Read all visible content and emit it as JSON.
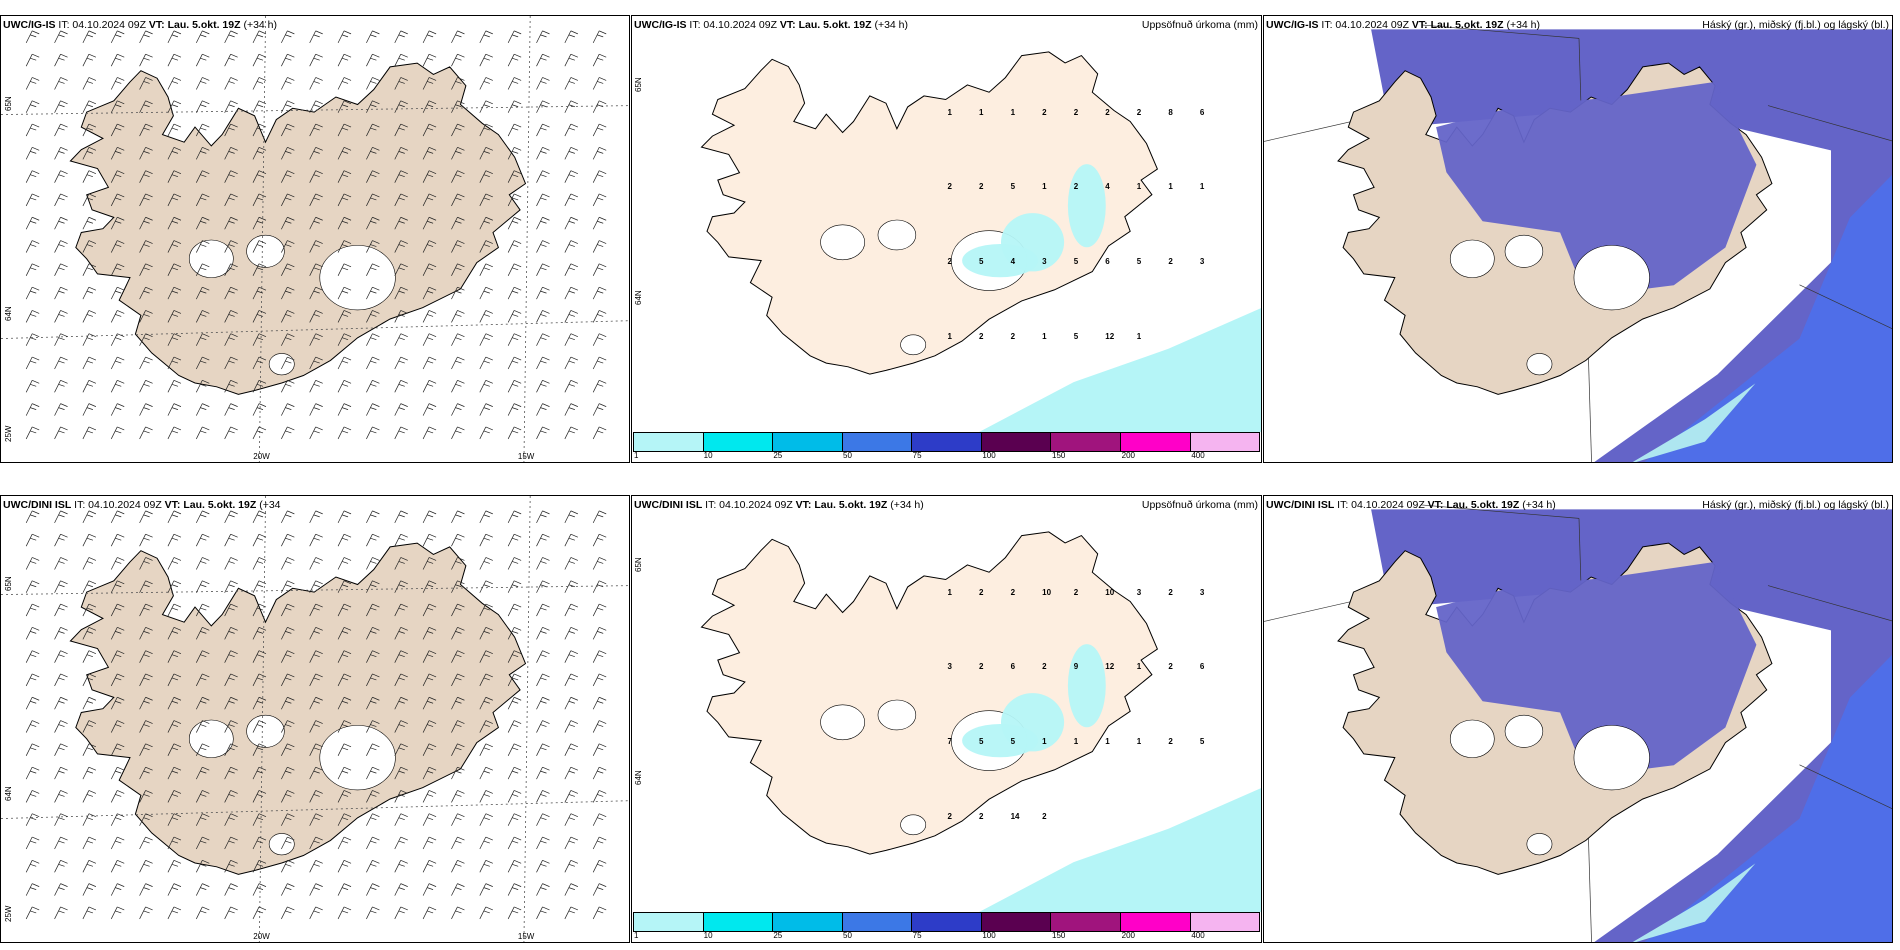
{
  "colors": {
    "land": "#e6d5c3",
    "land_light": "#fdeee0",
    "precip": "#b5f5f7",
    "cloud_high": "#6464c8",
    "cloud_mid": "#4f6ee8",
    "cloud_low": "#aee6f0"
  },
  "rows": [
    {
      "wind": {
        "model": "UWC/IG-IS",
        "it": "IT: 04.10.2024 09Z",
        "vt": "VT: Lau. 5.okt. 19Z",
        "lead": "(+34 h)",
        "lat_labels": [
          "65N",
          "64N",
          "25W"
        ],
        "lon_labels": [
          "20W",
          "15W"
        ]
      },
      "precip": {
        "model": "UWC/IG-IS",
        "it": "IT: 04.10.2024 09Z",
        "vt": "VT: Lau. 5.okt. 19Z",
        "lead": "(+34 h)",
        "subtitle": "Uppsöfnuð úrkoma (mm)",
        "lat_labels": [
          "65N",
          "64N"
        ],
        "values": [
          "1",
          "1",
          "1",
          "2",
          "2",
          "2",
          "2",
          "8",
          "6",
          "2",
          "2",
          "5",
          "1",
          "2",
          "4",
          "1",
          "1",
          "1",
          "2",
          "5",
          "4",
          "3",
          "5",
          "6",
          "5",
          "2",
          "3",
          "1",
          "2",
          "2",
          "1",
          "5",
          "12",
          "1"
        ]
      },
      "cloud": {
        "model": "UWC/IG-IS",
        "it": "IT: 04.10.2024 09Z",
        "vt": "VT: Lau. 5.okt. 19Z",
        "lead": "(+34 h)",
        "subtitle": "Háský (gr.), miðský (fj.bl.) og lágský (bl.)"
      }
    },
    {
      "wind": {
        "model": "UWC/DINI ISL",
        "it": "IT: 04.10.2024 09Z",
        "vt": "VT: Lau. 5.okt. 19Z",
        "lead": "(+34",
        "lat_labels": [
          "65N",
          "64N",
          "25W"
        ],
        "lon_labels": [
          "20W",
          "15W"
        ]
      },
      "precip": {
        "model": "UWC/DINI ISL",
        "it": "IT: 04.10.2024 09Z",
        "vt": "VT: Lau. 5.okt. 19Z",
        "lead": "(+34 h)",
        "subtitle": "Uppsöfnuð úrkoma (mm)",
        "lat_labels": [
          "65N",
          "64N"
        ],
        "values": [
          "1",
          "2",
          "2",
          "10",
          "2",
          "10",
          "3",
          "2",
          "3",
          "3",
          "2",
          "6",
          "2",
          "9",
          "12",
          "1",
          "2",
          "6",
          "7",
          "5",
          "5",
          "1",
          "1",
          "1",
          "1",
          "2",
          "5",
          "2",
          "2",
          "14",
          "2"
        ]
      },
      "cloud": {
        "model": "UWC/DINI ISL",
        "it": "IT: 04.10.2024 09Z",
        "vt": "VT: Lau. 5.okt. 19Z",
        "lead": "(+34 h)",
        "subtitle": "Háský (gr.), miðský (fj.bl.) og lágský (bl.)"
      }
    }
  ],
  "colorbar": {
    "ticks": [
      "1",
      "10",
      "25",
      "50",
      "75",
      "100",
      "150",
      "200",
      "400"
    ],
    "colors": [
      "#b5f5f7",
      "#00e8ee",
      "#00bce8",
      "#3c78e6",
      "#2d3cc8",
      "#5a0050",
      "#a0147d",
      "#ff00c8",
      "#f5b4f0"
    ]
  }
}
